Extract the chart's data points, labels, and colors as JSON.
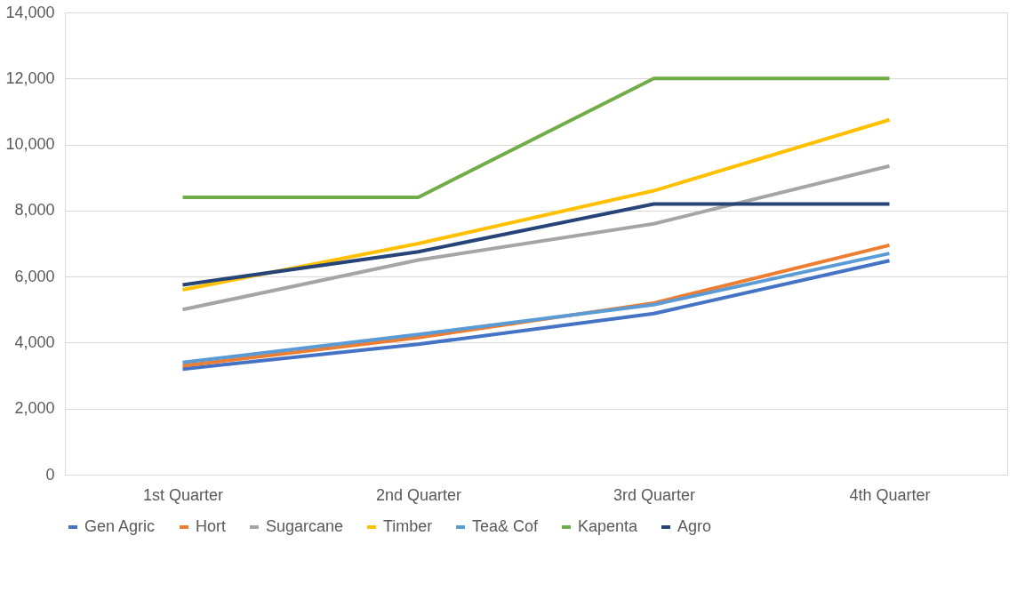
{
  "chart_data": {
    "type": "line",
    "categories": [
      "1st Quarter",
      "2nd Quarter",
      "3rd Quarter",
      "4th Quarter"
    ],
    "series": [
      {
        "name": "Gen Agric",
        "color": "#4472c4",
        "values": [
          3200,
          3950,
          4880,
          6480
        ]
      },
      {
        "name": "Hort",
        "color": "#ed7d31",
        "values": [
          3300,
          4150,
          5200,
          6950
        ]
      },
      {
        "name": "Sugarcane",
        "color": "#a5a5a5",
        "values": [
          5000,
          6500,
          7600,
          9350
        ]
      },
      {
        "name": "Timber",
        "color": "#ffc000",
        "values": [
          5600,
          7000,
          8600,
          10750
        ]
      },
      {
        "name": "Tea& Cof",
        "color": "#5b9bd5",
        "values": [
          3400,
          4250,
          5150,
          6700
        ]
      },
      {
        "name": "Kapenta",
        "color": "#70ad47",
        "values": [
          8400,
          8400,
          12000,
          12000
        ]
      },
      {
        "name": "Agro",
        "color": "#264478",
        "values": [
          5750,
          6750,
          8200,
          8200
        ]
      }
    ],
    "ylim": [
      0,
      14000
    ],
    "yticks": [
      {
        "value": 0,
        "label": "0"
      },
      {
        "value": 2000,
        "label": "2,000"
      },
      {
        "value": 4000,
        "label": "4,000"
      },
      {
        "value": 6000,
        "label": "6,000"
      },
      {
        "value": 8000,
        "label": "8,000"
      },
      {
        "value": 10000,
        "label": "10,000"
      },
      {
        "value": 12000,
        "label": "12,000"
      },
      {
        "value": 14000,
        "label": "14,000"
      }
    ],
    "grid": "y",
    "legend": "bottom",
    "marker": "none",
    "line_style": "solid"
  }
}
